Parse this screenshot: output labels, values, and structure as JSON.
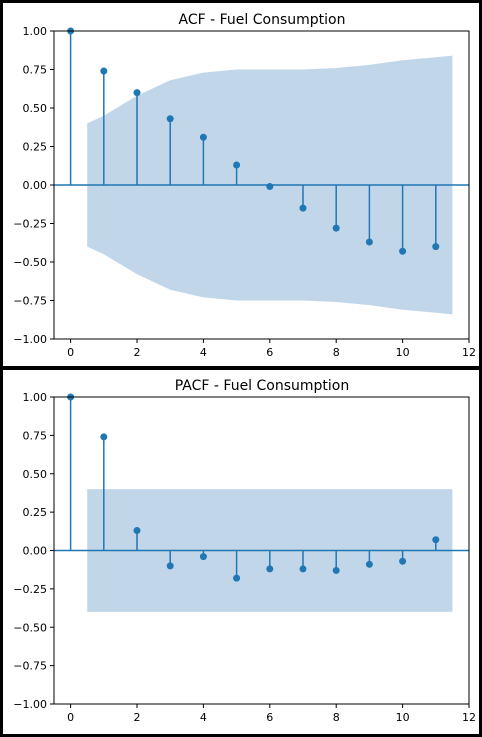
{
  "chart_data": [
    {
      "type": "stem",
      "title": "ACF - Fuel Consumption",
      "xlabel": "",
      "ylabel": "",
      "xlim": [
        -0.5,
        12
      ],
      "ylim": [
        -1.0,
        1.0
      ],
      "xticks": [
        "0",
        "2",
        "4",
        "6",
        "8",
        "10",
        "12"
      ],
      "yticks": [
        "1.00",
        "0.75",
        "0.50",
        "0.25",
        "0.00",
        "−0.25",
        "−0.50",
        "−0.75",
        "−1.00"
      ],
      "lags": [
        0,
        1,
        2,
        3,
        4,
        5,
        6,
        7,
        8,
        9,
        10,
        11
      ],
      "values": [
        1.0,
        0.74,
        0.6,
        0.43,
        0.31,
        0.13,
        -0.01,
        -0.15,
        -0.28,
        -0.37,
        -0.43,
        -0.4
      ],
      "confidence_band": {
        "lags": [
          0.5,
          1,
          2,
          3,
          4,
          5,
          6,
          7,
          8,
          9,
          10,
          11,
          11.5
        ],
        "upper": [
          0.4,
          0.45,
          0.58,
          0.68,
          0.73,
          0.75,
          0.75,
          0.75,
          0.76,
          0.78,
          0.81,
          0.83,
          0.84
        ],
        "lower": [
          -0.4,
          -0.45,
          -0.58,
          -0.68,
          -0.73,
          -0.75,
          -0.75,
          -0.75,
          -0.76,
          -0.78,
          -0.81,
          -0.83,
          -0.84
        ]
      },
      "colors": {
        "stem": "#1f77b4",
        "band": "#c2d6ea"
      }
    },
    {
      "type": "stem",
      "title": "PACF - Fuel Consumption",
      "xlabel": "",
      "ylabel": "",
      "xlim": [
        -0.5,
        12
      ],
      "ylim": [
        -1.0,
        1.0
      ],
      "xticks": [
        "0",
        "2",
        "4",
        "6",
        "8",
        "10",
        "12"
      ],
      "yticks": [
        "1.00",
        "0.75",
        "0.50",
        "0.25",
        "0.00",
        "−0.25",
        "−0.50",
        "−0.75",
        "−1.00"
      ],
      "lags": [
        0,
        1,
        2,
        3,
        4,
        5,
        6,
        7,
        8,
        9,
        10,
        11
      ],
      "values": [
        1.0,
        0.74,
        0.13,
        -0.1,
        -0.04,
        -0.18,
        -0.12,
        -0.12,
        -0.13,
        -0.09,
        -0.07,
        0.07
      ],
      "confidence_band": {
        "lags": [
          0.5,
          11.5
        ],
        "upper": [
          0.4,
          0.4
        ],
        "lower": [
          -0.4,
          -0.4
        ]
      },
      "colors": {
        "stem": "#1f77b4",
        "band": "#c2d6ea"
      }
    }
  ]
}
